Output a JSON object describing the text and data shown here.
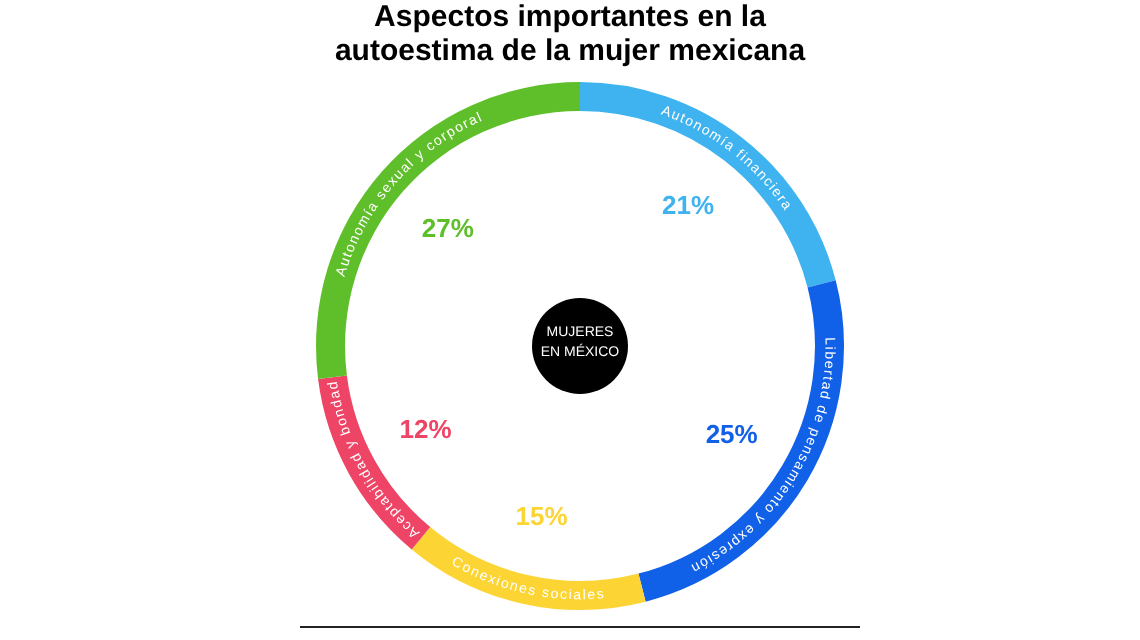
{
  "chart_data": {
    "type": "donut",
    "title": "Aspectos importantes en la autoestima de la mujer mexicana",
    "categories": [
      "Autonomía financiera",
      "Libertad de pensamiento y expresión",
      "Conexiones sociales",
      "Aceptabilidad y bondad",
      "Autonomía sexual y corporal"
    ],
    "values": [
      21,
      25,
      15,
      12,
      27
    ],
    "colors": [
      "#3fb3f0",
      "#1160e8",
      "#fcd535",
      "#ee4466",
      "#5fbf2a"
    ],
    "value_labels": [
      "21%",
      "25%",
      "15%",
      "12%",
      "27%"
    ],
    "annotations": [
      "MUJERES EN MÉXICO"
    ],
    "legend": false
  }
}
